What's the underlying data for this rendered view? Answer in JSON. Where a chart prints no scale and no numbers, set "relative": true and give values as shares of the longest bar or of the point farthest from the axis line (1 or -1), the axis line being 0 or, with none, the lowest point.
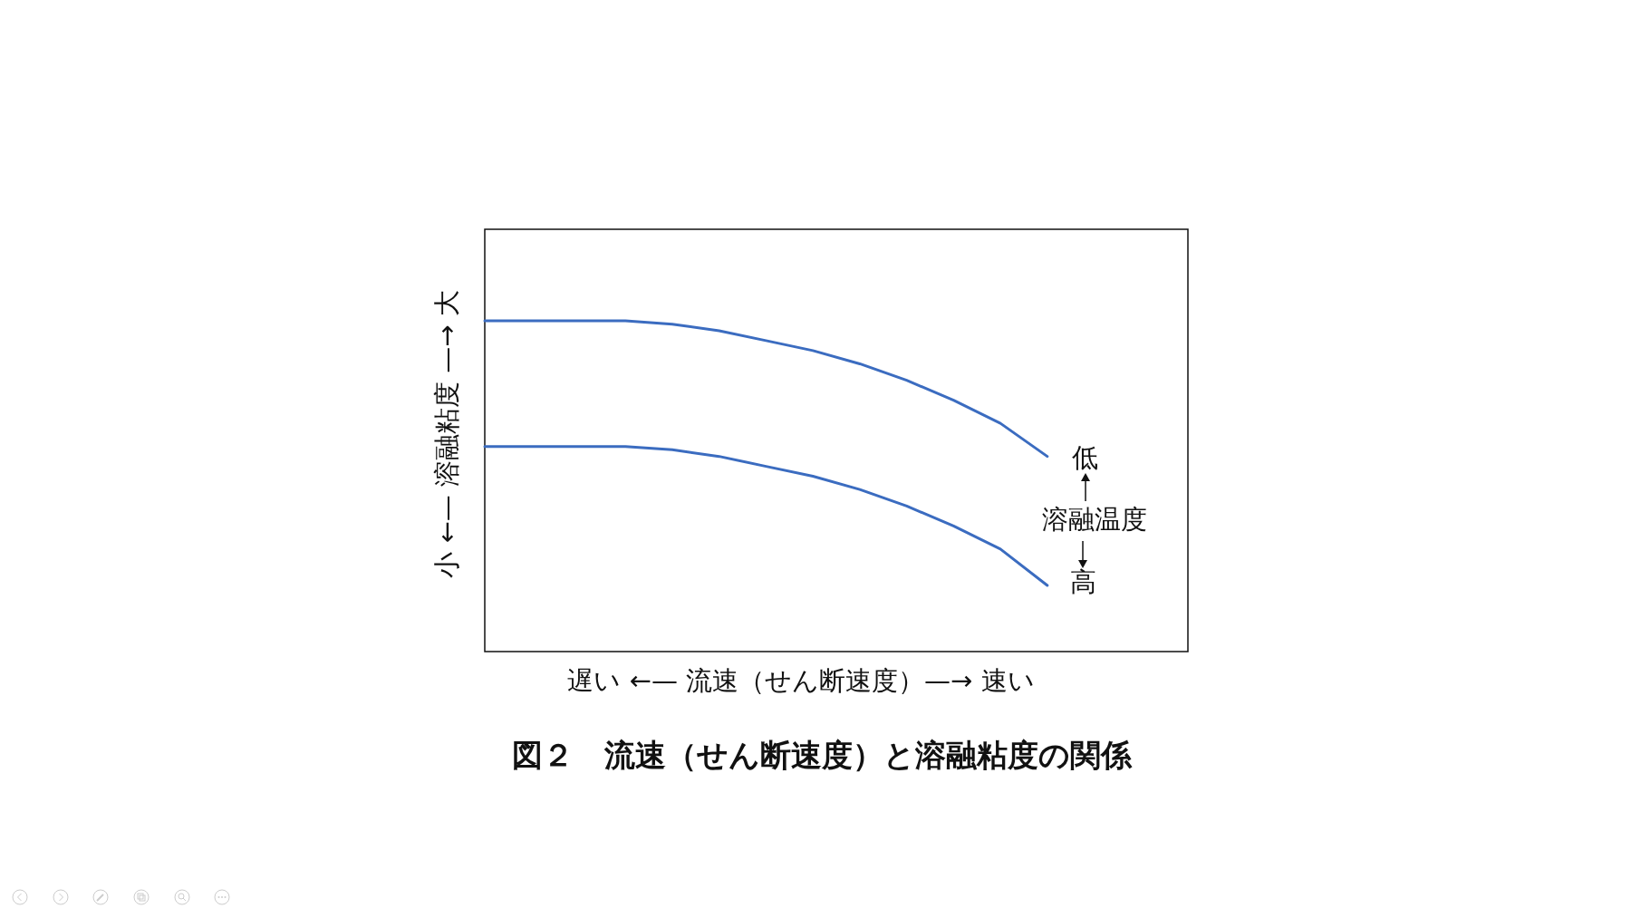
{
  "chart_data": {
    "type": "line",
    "relative": true,
    "marker": "none",
    "title": "図２　流速（せん断速度）と溶融粘度の関係",
    "xlabel": "遅い ←— 流速（せん断速度）—→ 速い",
    "ylabel": "小 ←— 溶融粘度 —→ 大",
    "annotations": [
      "低",
      "溶融温度",
      "高"
    ],
    "categories": [
      null,
      null,
      null,
      null,
      null,
      null,
      null,
      null,
      null,
      null,
      null,
      null,
      null,
      null,
      null,
      null
    ],
    "series": [
      {
        "color": "#3b6cc0",
        "values": [
          1,
          1,
          1,
          1,
          0.99,
          0.97,
          0.94,
          0.91,
          0.87,
          0.82,
          0.76,
          0.69,
          0.59,
          null,
          null,
          null
        ]
      },
      {
        "color": "#3b6cc0",
        "values": [
          0.62,
          0.62,
          0.62,
          0.62,
          0.61,
          0.59,
          0.56,
          0.53,
          0.49,
          0.44,
          0.38,
          0.31,
          0.2,
          null,
          null,
          null
        ]
      }
    ]
  }
}
